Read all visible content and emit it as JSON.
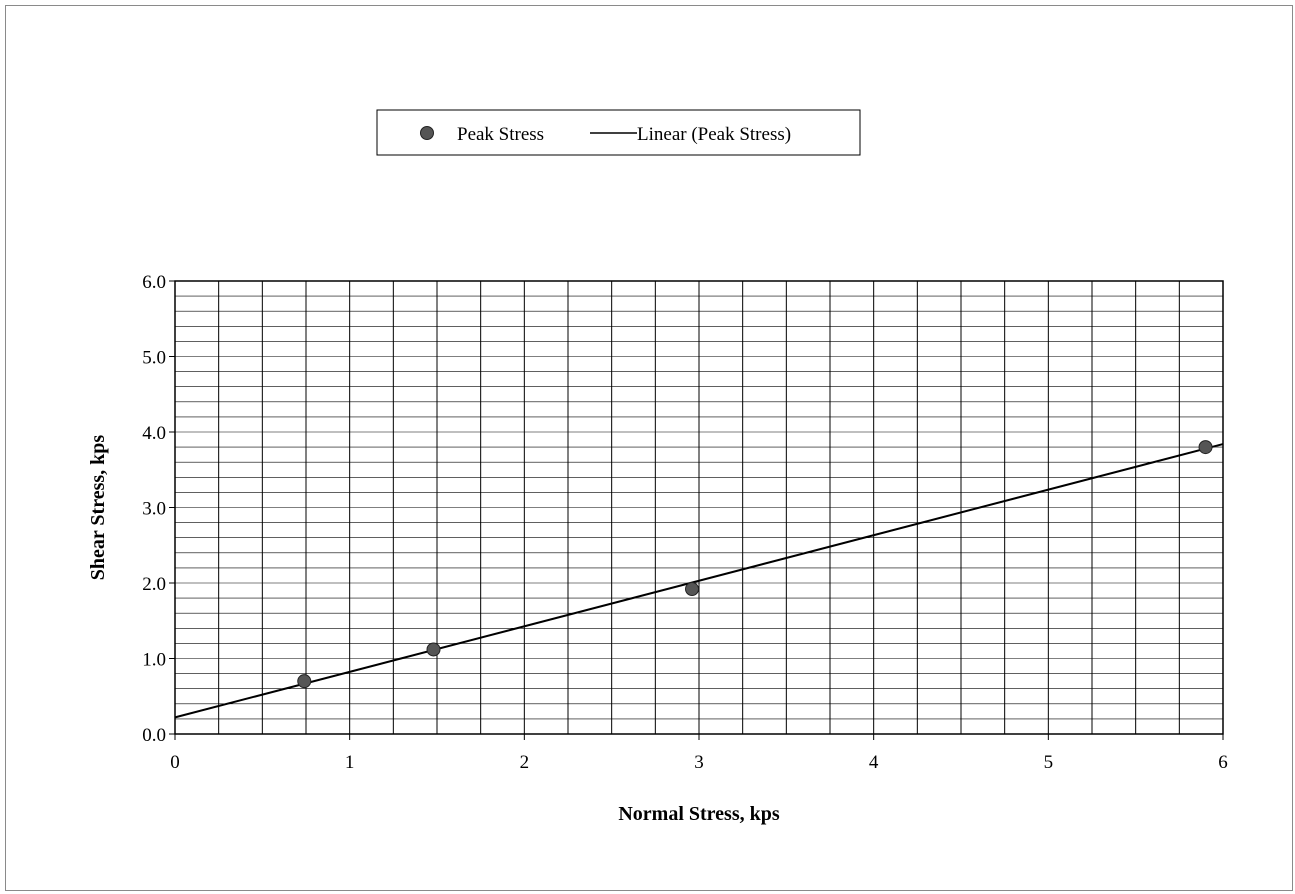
{
  "chart_data": {
    "type": "scatter",
    "title": "",
    "xlabel": "Normal Stress, kps",
    "ylabel": "Shear Stress, kps",
    "xlim": [
      0,
      6
    ],
    "ylim": [
      0,
      6
    ],
    "x_ticks": [
      "0",
      "1",
      "2",
      "3",
      "4",
      "5",
      "6"
    ],
    "y_ticks": [
      "0.0",
      "1.0",
      "2.0",
      "3.0",
      "4.0",
      "5.0",
      "6.0"
    ],
    "grid": true,
    "legend_position": "top-center",
    "series": [
      {
        "name": "Peak Stress",
        "kind": "points",
        "color": "#555555",
        "x": [
          0.74,
          1.48,
          2.96,
          5.9
        ],
        "y": [
          0.7,
          1.12,
          1.92,
          3.8
        ]
      },
      {
        "name": "Linear (Peak Stress)",
        "kind": "trendline",
        "color": "#000000",
        "x": [
          0,
          6
        ],
        "y": [
          0.22,
          3.84
        ]
      }
    ]
  }
}
